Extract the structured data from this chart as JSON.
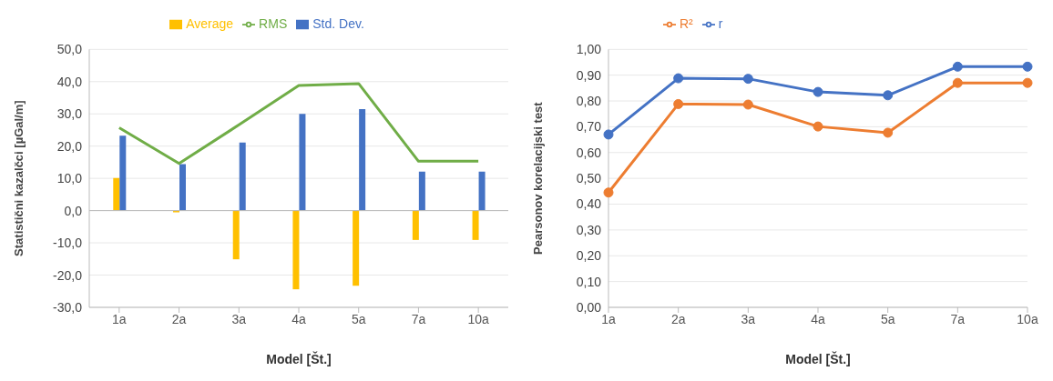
{
  "chart_data": [
    {
      "type": "bar",
      "xlabel": "Model [Št.]",
      "ylabel": "Statistični kazalčci [µGal/m]",
      "categories": [
        "1a",
        "2a",
        "3a",
        "4a",
        "5a",
        "7a",
        "10a"
      ],
      "series": [
        {
          "name": "Average",
          "color": "#ffc000",
          "values": [
            10.1,
            -0.5,
            -15.1,
            -24.4,
            -23.3,
            -9.1,
            -9.1
          ]
        },
        {
          "name": "Std. Dev.",
          "color": "#4472c4",
          "values": [
            23.2,
            14.4,
            21.1,
            30.0,
            31.5,
            12.1,
            12.1
          ]
        },
        {
          "name": "RMS",
          "type": "line",
          "color": "#70ad47",
          "marker": "none",
          "values": [
            25.7,
            14.6,
            26.6,
            38.8,
            39.4,
            15.3,
            15.3
          ]
        }
      ],
      "ylim": [
        -30,
        50
      ],
      "yticks": [
        {
          "value": -30,
          "label": "-30,0"
        },
        {
          "value": -20,
          "label": "-20,0"
        },
        {
          "value": -10,
          "label": "-10,0"
        },
        {
          "value": 0,
          "label": "0,0"
        },
        {
          "value": 10,
          "label": "10,0"
        },
        {
          "value": 20,
          "label": "20,0"
        },
        {
          "value": 30,
          "label": "30,0"
        },
        {
          "value": 40,
          "label": "40,0"
        },
        {
          "value": 50,
          "label": "50,0"
        }
      ],
      "grid": "y",
      "legend": "top"
    },
    {
      "type": "line",
      "xlabel": "Model [Št.]",
      "ylabel": "Pearsonov korelacijski test",
      "categories": [
        "1a",
        "2a",
        "3a",
        "4a",
        "5a",
        "7a",
        "10a"
      ],
      "series": [
        {
          "name": "R²",
          "color": "#ed7d31",
          "values": [
            0.445,
            0.788,
            0.786,
            0.701,
            0.677,
            0.87,
            0.87
          ]
        },
        {
          "name": "r",
          "color": "#4472c4",
          "values": [
            0.67,
            0.888,
            0.886,
            0.835,
            0.822,
            0.933,
            0.933
          ]
        }
      ],
      "ylim": [
        0,
        1
      ],
      "yticks": [
        {
          "value": 0,
          "label": "0,00"
        },
        {
          "value": 0.1,
          "label": "0,10"
        },
        {
          "value": 0.2,
          "label": "0,20"
        },
        {
          "value": 0.3,
          "label": "0,30"
        },
        {
          "value": 0.4,
          "label": "0,40"
        },
        {
          "value": 0.5,
          "label": "0,50"
        },
        {
          "value": 0.6,
          "label": "0,60"
        },
        {
          "value": 0.7,
          "label": "0,70"
        },
        {
          "value": 0.8,
          "label": "0,80"
        },
        {
          "value": 0.9,
          "label": "0,90"
        },
        {
          "value": 1,
          "label": "1,00"
        }
      ],
      "grid": "y",
      "marker": "circle",
      "legend": "top left"
    }
  ]
}
